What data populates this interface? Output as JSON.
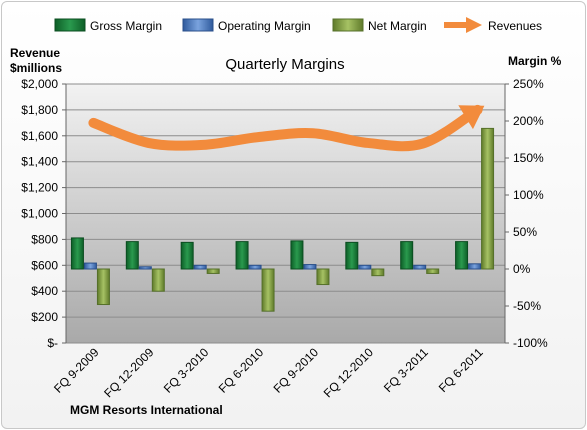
{
  "chart_data": {
    "type": "bar",
    "title": "Quarterly Margins",
    "company": "MGM Resorts International",
    "left_axis": {
      "label_line1": "Revenue",
      "label_line2": "$millions",
      "min": 0,
      "max": 2000,
      "step": 200,
      "tick_labels": [
        "$-",
        "$200",
        "$400",
        "$600",
        "$800",
        "$1,000",
        "$1,200",
        "$1,400",
        "$1,600",
        "$1,800",
        "$2,000"
      ]
    },
    "right_axis": {
      "label": "Margin %",
      "min": -100,
      "max": 250,
      "step": 50,
      "tick_labels": [
        "-100%",
        "-50%",
        "0%",
        "50%",
        "100%",
        "150%",
        "200%",
        "250%"
      ]
    },
    "categories": [
      "FQ 9-2009",
      "FQ 12-2009",
      "FQ 3-2010",
      "FQ 6-2010",
      "FQ 9-2010",
      "FQ 12-2010",
      "FQ 3-2011",
      "FQ 6-2011"
    ],
    "series": [
      {
        "name": "Gross Margin",
        "axis": "right",
        "kind": "bar",
        "color": "#1a7a3a",
        "values": [
          42,
          37,
          36,
          37,
          38,
          36,
          37,
          37
        ]
      },
      {
        "name": "Operating Margin",
        "axis": "right",
        "kind": "bar",
        "color": "#4f7fc4",
        "values": [
          8,
          3,
          5,
          5,
          6,
          5,
          5,
          7
        ]
      },
      {
        "name": "Net Margin",
        "axis": "right",
        "kind": "bar",
        "color": "#8aa84a",
        "values": [
          -48,
          -30,
          -6,
          -57,
          -21,
          -9,
          -6,
          190
        ]
      },
      {
        "name": "Revenues",
        "axis": "left",
        "kind": "line",
        "color": "#f28b3c",
        "values": [
          1700,
          1545,
          1530,
          1590,
          1620,
          1545,
          1540,
          1800
        ]
      }
    ],
    "grid": true,
    "legend_position": "top"
  }
}
